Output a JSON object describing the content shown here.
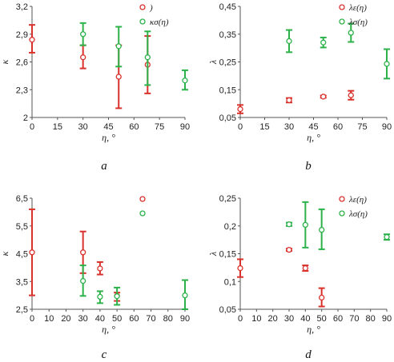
{
  "colors": {
    "red": "#d9312b",
    "green": "#2db24a",
    "axis": "#555555"
  },
  "chart_data": [
    {
      "panel": "a",
      "type": "scatter",
      "xlabel": "η, °",
      "ylabel": "κ",
      "xlim": [
        0,
        90
      ],
      "ylim": [
        2,
        3.2
      ],
      "xticks": [
        "0",
        "15",
        "30",
        "45",
        "60",
        "75",
        "90"
      ],
      "yticks": [
        "2",
        "2,3",
        "2,6",
        "2,9",
        "3,2"
      ],
      "series": [
        {
          "name": ")",
          "color": "red",
          "points": [
            {
              "x": 0,
              "y": 2.84,
              "lo": 2.7,
              "hi": 3.0
            },
            {
              "x": 30,
              "y": 2.65,
              "lo": 2.53,
              "hi": 2.78
            },
            {
              "x": 51,
              "y": 2.44,
              "lo": 2.1,
              "hi": 2.78
            },
            {
              "x": 68,
              "y": 2.57,
              "lo": 2.26,
              "hi": 2.88
            }
          ]
        },
        {
          "name": "κσ(η)",
          "color": "green",
          "points": [
            {
              "x": 30,
              "y": 2.9,
              "lo": 2.78,
              "hi": 3.02
            },
            {
              "x": 51,
              "y": 2.77,
              "lo": 2.55,
              "hi": 2.98
            },
            {
              "x": 68,
              "y": 2.65,
              "lo": 2.35,
              "hi": 2.93
            },
            {
              "x": 90,
              "y": 2.4,
              "lo": 2.3,
              "hi": 2.51
            }
          ]
        }
      ]
    },
    {
      "panel": "b",
      "type": "scatter",
      "xlabel": "η, °",
      "ylabel": "λ",
      "xlim": [
        0,
        90
      ],
      "ylim": [
        0.05,
        0.45
      ],
      "xticks": [
        "0",
        "15",
        "30",
        "45",
        "60",
        "75",
        "90"
      ],
      "yticks": [
        "0,05",
        "0,15",
        "0,25",
        "0,35",
        "0,45"
      ],
      "series": [
        {
          "name": "λε(η)",
          "color": "red",
          "points": [
            {
              "x": 0,
              "y": 0.08,
              "lo": 0.065,
              "hi": 0.095
            },
            {
              "x": 30,
              "y": 0.112,
              "lo": 0.104,
              "hi": 0.12
            },
            {
              "x": 51,
              "y": 0.125,
              "lo": 0.121,
              "hi": 0.129
            },
            {
              "x": 68,
              "y": 0.13,
              "lo": 0.114,
              "hi": 0.146
            }
          ]
        },
        {
          "name": "λσ(η)",
          "color": "green",
          "points": [
            {
              "x": 30,
              "y": 0.325,
              "lo": 0.285,
              "hi": 0.365
            },
            {
              "x": 51,
              "y": 0.32,
              "lo": 0.302,
              "hi": 0.338
            },
            {
              "x": 68,
              "y": 0.355,
              "lo": 0.322,
              "hi": 0.388
            },
            {
              "x": 90,
              "y": 0.243,
              "lo": 0.19,
              "hi": 0.296
            }
          ]
        }
      ]
    },
    {
      "panel": "c",
      "type": "scatter",
      "xlabel": "η, °",
      "ylabel": "κ",
      "xlim": [
        0,
        90
      ],
      "ylim": [
        2.5,
        6.5
      ],
      "xticks": [
        "0",
        "10",
        "20",
        "30",
        "40",
        "50",
        "60",
        "70",
        "80",
        "90"
      ],
      "yticks": [
        "2,5",
        "3,5",
        "4,5",
        "5,5",
        "6,5"
      ],
      "series": [
        {
          "name": "",
          "color": "red",
          "points": [
            {
              "x": 0,
              "y": 4.55,
              "lo": 3.0,
              "hi": 6.1
            },
            {
              "x": 30,
              "y": 4.55,
              "lo": 3.8,
              "hi": 5.3
            },
            {
              "x": 40,
              "y": 3.97,
              "lo": 3.75,
              "hi": 4.2
            },
            {
              "x": 50,
              "y": 2.98,
              "lo": 2.8,
              "hi": 3.1
            }
          ]
        },
        {
          "name": "",
          "color": "green",
          "points": [
            {
              "x": 30,
              "y": 3.52,
              "lo": 2.98,
              "hi": 4.08
            },
            {
              "x": 40,
              "y": 2.95,
              "lo": 2.72,
              "hi": 3.15
            },
            {
              "x": 50,
              "y": 2.97,
              "lo": 2.66,
              "hi": 3.28
            },
            {
              "x": 90,
              "y": 3.0,
              "lo": 2.5,
              "hi": 3.55
            }
          ]
        }
      ]
    },
    {
      "panel": "d",
      "type": "scatter",
      "xlabel": "η, °",
      "ylabel": "λ",
      "xlim": [
        0,
        90
      ],
      "ylim": [
        0.05,
        0.25
      ],
      "xticks": [
        "0",
        "10",
        "20",
        "30",
        "40",
        "50",
        "60",
        "70",
        "80",
        "90"
      ],
      "yticks": [
        "0,05",
        "0,1",
        "0,15",
        "0,2",
        "0,25"
      ],
      "series": [
        {
          "name": "λε(η)",
          "color": "red",
          "points": [
            {
              "x": 0,
              "y": 0.124,
              "lo": 0.108,
              "hi": 0.14
            },
            {
              "x": 30,
              "y": 0.157,
              "lo": 0.155,
              "hi": 0.159
            },
            {
              "x": 40,
              "y": 0.124,
              "lo": 0.119,
              "hi": 0.129
            },
            {
              "x": 50,
              "y": 0.071,
              "lo": 0.055,
              "hi": 0.088
            }
          ]
        },
        {
          "name": "λσ(η)",
          "color": "green",
          "points": [
            {
              "x": 30,
              "y": 0.203,
              "lo": 0.2,
              "hi": 0.206
            },
            {
              "x": 40,
              "y": 0.202,
              "lo": 0.161,
              "hi": 0.243
            },
            {
              "x": 50,
              "y": 0.193,
              "lo": 0.158,
              "hi": 0.23
            },
            {
              "x": 90,
              "y": 0.18,
              "lo": 0.175,
              "hi": 0.185
            }
          ]
        }
      ]
    }
  ]
}
